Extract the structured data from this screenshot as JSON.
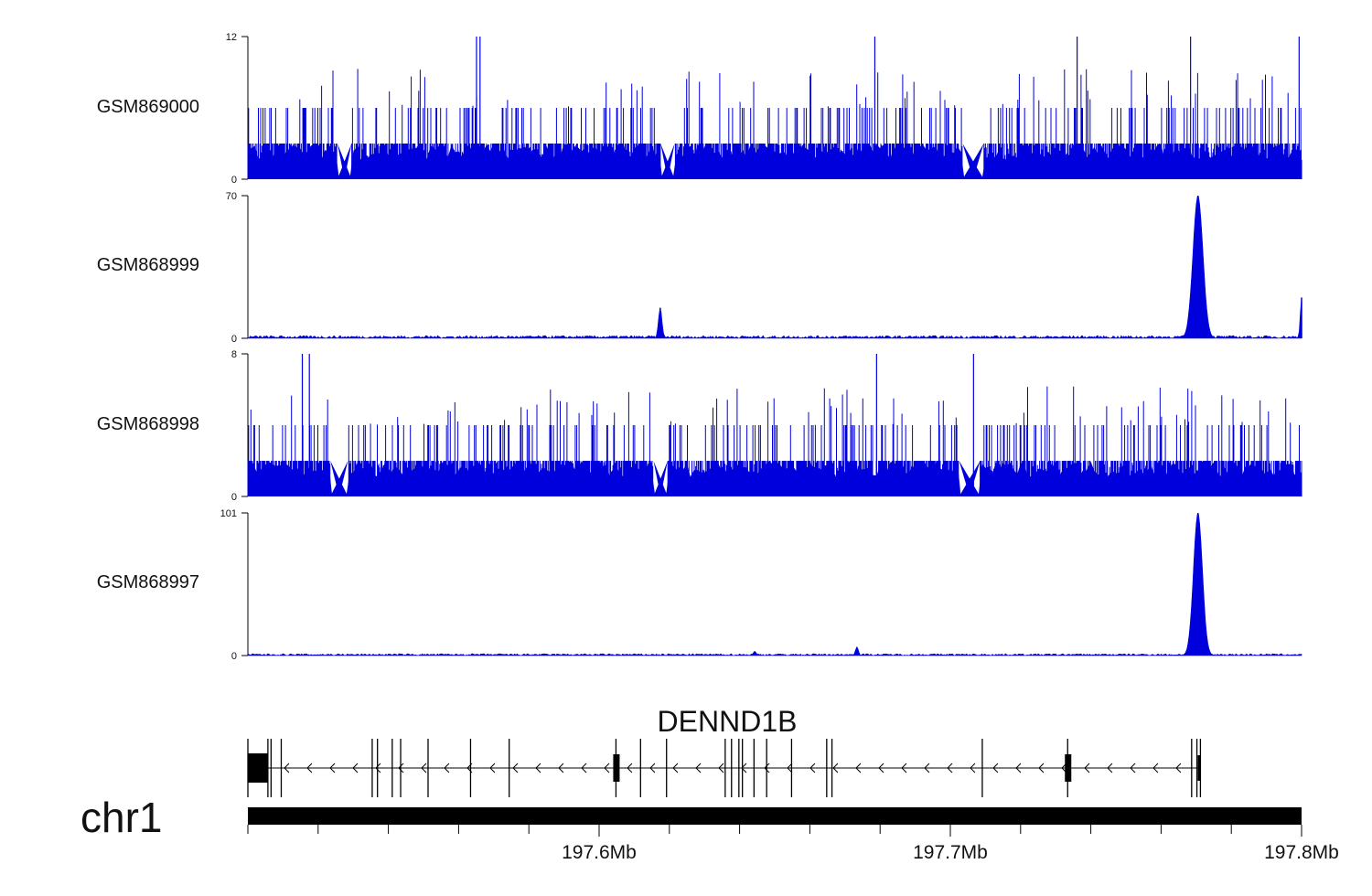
{
  "chart_data": {
    "type": "area",
    "genome": {
      "chromosome": "chr1",
      "x_range_mb": [
        197.5,
        197.8
      ],
      "x_ticks": [
        {
          "value": 197.6,
          "label": "197.6Mb"
        },
        {
          "value": 197.7,
          "label": "197.7Mb"
        },
        {
          "value": 197.8,
          "label": "197.8Mb"
        }
      ],
      "gene": {
        "name": "DENND1B",
        "strand": "-",
        "start_mb": 197.5,
        "end_mb": 197.7712,
        "exons_mb": [
          197.5,
          197.5057,
          197.5066,
          197.5095,
          197.5354,
          197.5369,
          197.5411,
          197.5435,
          197.5513,
          197.5634,
          197.5744,
          197.6048,
          197.6118,
          197.6192,
          197.6359,
          197.6377,
          197.6398,
          197.6408,
          197.6441,
          197.6477,
          197.6548,
          197.6648,
          197.6663,
          197.7091,
          197.7334,
          197.7687,
          197.7702,
          197.7712
        ]
      }
    },
    "series": [
      {
        "name": "GSM869000",
        "ylim": [
          0,
          12
        ],
        "color": "#0000dd",
        "profile": "noisy",
        "base": 3,
        "mid": 6,
        "peaks": [
          {
            "x": 197.5651,
            "value": 12
          },
          {
            "x": 197.5661,
            "value": 12
          },
          {
            "x": 197.6785,
            "value": 12
          },
          {
            "x": 197.7361,
            "value": 12
          },
          {
            "x": 197.7684,
            "value": 12
          },
          {
            "x": 197.7993,
            "value": 12
          }
        ],
        "gaps": [
          [
            197.5255,
            197.5295
          ],
          [
            197.6175,
            197.6215
          ],
          [
            197.7035,
            197.7095
          ]
        ]
      },
      {
        "name": "GSM868999",
        "ylim": [
          0,
          70
        ],
        "color": "#0000dd",
        "profile": "quiet",
        "baseline": 1,
        "peaks": [
          {
            "x": 197.6174,
            "value": 15,
            "width": 0.0007
          },
          {
            "x": 197.7705,
            "value": 70,
            "width": 0.002
          },
          {
            "x": 197.8,
            "value": 20,
            "width": 0.0005
          }
        ]
      },
      {
        "name": "GSM868998",
        "ylim": [
          0,
          8
        ],
        "color": "#0000dd",
        "profile": "noisy",
        "base": 2,
        "mid": 4,
        "peaks": [
          {
            "x": 197.5155,
            "value": 8
          },
          {
            "x": 197.5175,
            "value": 8
          },
          {
            "x": 197.679,
            "value": 8
          },
          {
            "x": 197.7066,
            "value": 8
          }
        ],
        "gaps": [
          [
            197.5235,
            197.5285
          ],
          [
            197.6155,
            197.6195
          ],
          [
            197.7025,
            197.7085
          ]
        ]
      },
      {
        "name": "GSM868997",
        "ylim": [
          0,
          101
        ],
        "color": "#0000dd",
        "profile": "quiet",
        "baseline": 1,
        "peaks": [
          {
            "x": 197.7705,
            "value": 101,
            "width": 0.0018
          },
          {
            "x": 197.6734,
            "value": 6,
            "width": 0.0006
          },
          {
            "x": 197.6443,
            "value": 3,
            "width": 0.0006
          }
        ]
      }
    ]
  }
}
